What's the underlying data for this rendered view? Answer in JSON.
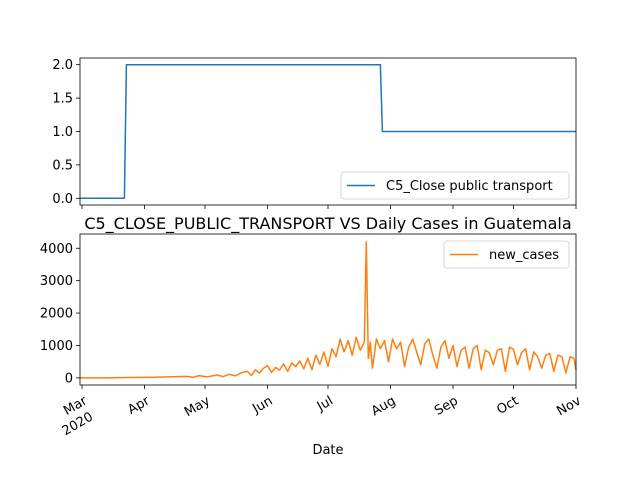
{
  "chart_data": [
    {
      "type": "line",
      "title": "",
      "xlabel": "",
      "ylabel": "",
      "xlim": [
        "2020-02-29",
        "2020-11-01"
      ],
      "ylim": [
        -0.1,
        2.1
      ],
      "y_ticks": [
        "0.0",
        "0.5",
        "1.0",
        "1.5",
        "2.0"
      ],
      "legend_position": "lower-right",
      "series": [
        {
          "name": "C5_Close public transport",
          "color": "#1f77b4",
          "x": [
            "2020-02-29",
            "2020-03-22",
            "2020-03-23",
            "2020-07-27",
            "2020-07-28",
            "2020-11-01"
          ],
          "values": [
            0,
            0,
            2,
            2,
            1,
            1
          ]
        }
      ]
    },
    {
      "type": "line",
      "title": "C5_CLOSE_PUBLIC_TRANSPORT VS Daily Cases in Guatemala",
      "xlabel": "Date",
      "ylabel": "",
      "xlim": [
        "2020-02-29",
        "2020-11-01"
      ],
      "ylim": [
        -220,
        4440
      ],
      "y_ticks": [
        "0",
        "1000",
        "2000",
        "3000",
        "4000"
      ],
      "x_ticks": [
        {
          "date": "2020-03-01",
          "label": "Mar",
          "sublabel": "2020"
        },
        {
          "date": "2020-04-01",
          "label": "Apr"
        },
        {
          "date": "2020-05-01",
          "label": "May"
        },
        {
          "date": "2020-06-01",
          "label": "Jun"
        },
        {
          "date": "2020-07-01",
          "label": "Jul"
        },
        {
          "date": "2020-08-01",
          "label": "Aug"
        },
        {
          "date": "2020-09-01",
          "label": "Sep"
        },
        {
          "date": "2020-10-01",
          "label": "Oct"
        },
        {
          "date": "2020-11-01",
          "label": "Nov"
        }
      ],
      "legend_position": "top-right",
      "series": [
        {
          "name": "new_cases",
          "color": "#ff7f0e",
          "x": [
            "2020-02-29",
            "2020-03-13",
            "2020-03-25",
            "2020-04-05",
            "2020-04-15",
            "2020-04-22",
            "2020-04-25",
            "2020-04-28",
            "2020-05-02",
            "2020-05-07",
            "2020-05-10",
            "2020-05-13",
            "2020-05-16",
            "2020-05-19",
            "2020-05-22",
            "2020-05-24",
            "2020-05-26",
            "2020-05-28",
            "2020-05-30",
            "2020-06-01",
            "2020-06-03",
            "2020-06-05",
            "2020-06-07",
            "2020-06-09",
            "2020-06-11",
            "2020-06-13",
            "2020-06-15",
            "2020-06-17",
            "2020-06-19",
            "2020-06-21",
            "2020-06-23",
            "2020-06-25",
            "2020-06-27",
            "2020-06-29",
            "2020-07-01",
            "2020-07-03",
            "2020-07-05",
            "2020-07-07",
            "2020-07-09",
            "2020-07-11",
            "2020-07-13",
            "2020-07-15",
            "2020-07-17",
            "2020-07-19",
            "2020-07-20",
            "2020-07-21",
            "2020-07-22",
            "2020-07-23",
            "2020-07-25",
            "2020-07-27",
            "2020-07-29",
            "2020-07-31",
            "2020-08-02",
            "2020-08-04",
            "2020-08-06",
            "2020-08-08",
            "2020-08-10",
            "2020-08-12",
            "2020-08-14",
            "2020-08-16",
            "2020-08-18",
            "2020-08-20",
            "2020-08-22",
            "2020-08-24",
            "2020-08-26",
            "2020-08-28",
            "2020-08-30",
            "2020-09-01",
            "2020-09-03",
            "2020-09-05",
            "2020-09-07",
            "2020-09-09",
            "2020-09-11",
            "2020-09-13",
            "2020-09-15",
            "2020-09-17",
            "2020-09-19",
            "2020-09-21",
            "2020-09-23",
            "2020-09-25",
            "2020-09-27",
            "2020-09-29",
            "2020-10-01",
            "2020-10-03",
            "2020-10-05",
            "2020-10-07",
            "2020-10-09",
            "2020-10-11",
            "2020-10-13",
            "2020-10-15",
            "2020-10-17",
            "2020-10-19",
            "2020-10-21",
            "2020-10-23",
            "2020-10-25",
            "2020-10-27",
            "2020-10-29",
            "2020-10-31",
            "2020-11-01"
          ],
          "values": [
            0,
            0,
            10,
            20,
            35,
            45,
            15,
            70,
            30,
            90,
            40,
            110,
            60,
            160,
            200,
            70,
            250,
            150,
            300,
            380,
            170,
            320,
            240,
            430,
            200,
            460,
            350,
            520,
            280,
            610,
            250,
            700,
            420,
            800,
            350,
            900,
            650,
            1200,
            800,
            1150,
            700,
            1250,
            850,
            1100,
            4200,
            600,
            1100,
            300,
            1200,
            900,
            1150,
            500,
            1200,
            900,
            1100,
            350,
            950,
            1200,
            800,
            400,
            1050,
            1200,
            700,
            300,
            950,
            1150,
            600,
            1000,
            350,
            850,
            950,
            300,
            900,
            1000,
            250,
            850,
            780,
            400,
            850,
            900,
            200,
            950,
            880,
            400,
            780,
            900,
            250,
            800,
            650,
            300,
            700,
            750,
            200,
            700,
            650,
            150,
            650,
            600,
            250
          ]
        }
      ]
    }
  ]
}
